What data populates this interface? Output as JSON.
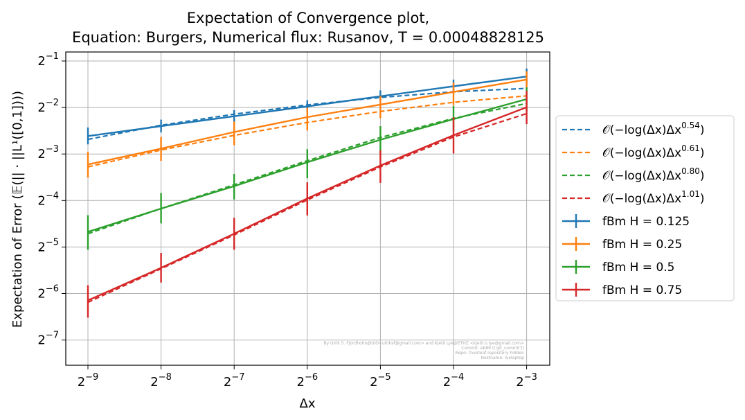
{
  "chart_data": {
    "type": "line",
    "title_line1": "Expectation of Convergence plot,",
    "title_line2": "Equation: Burgers, Numerical flux: Rusanov, T = 0.00048828125",
    "xlabel": "Δx",
    "ylabel": "Expectation of Error (𝔼(|| · ||L¹([0,1])))",
    "x_scale": "log2",
    "y_scale": "log2",
    "x": [
      0.001953125,
      0.00390625,
      0.0078125,
      0.015625,
      0.03125,
      0.0625,
      0.125
    ],
    "xticks": [
      {
        "base": "2",
        "exp": "−9"
      },
      {
        "base": "2",
        "exp": "−8"
      },
      {
        "base": "2",
        "exp": "−7"
      },
      {
        "base": "2",
        "exp": "−6"
      },
      {
        "base": "2",
        "exp": "−5"
      },
      {
        "base": "2",
        "exp": "−4"
      },
      {
        "base": "2",
        "exp": "−3"
      }
    ],
    "yticks": [
      {
        "base": "2",
        "exp": "−1"
      },
      {
        "base": "2",
        "exp": "−2"
      },
      {
        "base": "2",
        "exp": "−3"
      },
      {
        "base": "2",
        "exp": "−4"
      },
      {
        "base": "2",
        "exp": "−5"
      },
      {
        "base": "2",
        "exp": "−6"
      },
      {
        "base": "2",
        "exp": "−7"
      }
    ],
    "grid": true,
    "legend_position": "outside-right",
    "series": [
      {
        "name": "fBm H = 0.125",
        "color": "#1f77b4",
        "values": [
          0.1634,
          0.1894,
          0.2194,
          0.2542,
          0.2955,
          0.3429,
          0.3969
        ],
        "err_low": [
          0.1443,
          0.1723,
          0.2004,
          0.2333,
          0.2727,
          0.315,
          0.3536
        ],
        "err_high": [
          0.1856,
          0.2086,
          0.2401,
          0.2787,
          0.3226,
          0.3789,
          0.4469
        ]
      },
      {
        "name": "fBm H = 0.25",
        "color": "#ff7f0e",
        "values": [
          0.1069,
          0.1355,
          0.1734,
          0.2165,
          0.2612,
          0.315,
          0.3789
        ],
        "err_low": [
          0.088,
          0.1129,
          0.1426,
          0.1773,
          0.2128,
          0.2588,
          0.315
        ],
        "err_high": [
          0.1291,
          0.1612,
          0.2029,
          0.2482,
          0.2973,
          0.362,
          0.4282
        ]
      },
      {
        "name": "fBm H = 0.5",
        "color": "#2ca02c",
        "values": [
          0.0392,
          0.0554,
          0.0774,
          0.1105,
          0.1546,
          0.2102,
          0.2833
        ],
        "err_low": [
          0.03,
          0.0444,
          0.0635,
          0.087,
          0.1233,
          0.1741,
          0.2351
        ],
        "err_high": [
          0.0502,
          0.0699,
          0.0928,
          0.1343,
          0.1893,
          0.2563,
          0.3377
        ]
      },
      {
        "name": "fBm H = 0.75",
        "color": "#d62728",
        "values": [
          0.0141,
          0.0229,
          0.0381,
          0.0644,
          0.1052,
          0.1654,
          0.2511
        ],
        "err_low": [
          0.0109,
          0.0184,
          0.03,
          0.05,
          0.0813,
          0.126,
          0.195
        ],
        "err_high": [
          0.0177,
          0.0286,
          0.0483,
          0.082,
          0.132,
          0.2165,
          0.3201
        ]
      }
    ],
    "fits": [
      {
        "name": "𝒪(−log(Δx)Δx^0.54)",
        "prefix": "𝒪(−log(Δx)Δx",
        "exp": "0.54",
        "color": "#1f77b4",
        "values": [
          0.1554,
          0.1919,
          0.2265,
          0.2597,
          0.2904,
          0.3162,
          0.3326
        ]
      },
      {
        "name": "𝒪(−log(Δx)Δx^0.61)",
        "prefix": "𝒪(−log(Δx)Δx",
        "exp": "0.61",
        "color": "#ff7f0e",
        "values": [
          0.1031,
          0.1326,
          0.1651,
          0.2,
          0.2358,
          0.27,
          0.2973
        ]
      },
      {
        "name": "𝒪(−log(Δx)Δx^0.80)",
        "prefix": "𝒪(−log(Δx)Δx",
        "exp": "0.80",
        "color": "#2ca02c",
        "values": [
          0.0381,
          0.0554,
          0.079,
          0.1131,
          0.1598,
          0.2126,
          0.2653
        ]
      },
      {
        "name": "𝒪(−log(Δx)Δx^1.01)",
        "prefix": "𝒪(−log(Δx)Δx",
        "exp": "1.01",
        "color": "#d62728",
        "values": [
          0.0137,
          0.0226,
          0.0374,
          0.063,
          0.103,
          0.1612,
          0.2282
        ]
      }
    ],
    "watermark": [
      "By Ulrik S. Fjordholm@UiO<ulriksf@gmail.com> and Kjetil Lye@ETHZ <kjetil.o.lye@gmail.com>",
      "Commit: eb89 (('git_commit'))",
      "Repo: Overleaf repository hidden",
      "Hostname: lyelaptop"
    ]
  }
}
